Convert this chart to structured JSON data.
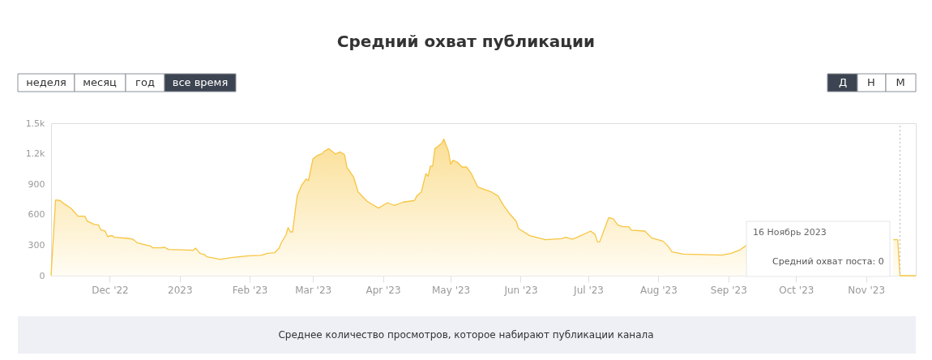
{
  "chart_data": {
    "type": "area",
    "title": "Средний охват публикации",
    "x": [
      "2022-11-05",
      "2022-11-07",
      "2022-11-09",
      "2022-11-11",
      "2022-11-14",
      "2022-11-17",
      "2022-11-20",
      "2022-11-21",
      "2022-11-24",
      "2022-11-26",
      "2022-11-27",
      "2022-11-29",
      "2022-11-30",
      "2022-12-02",
      "2022-12-03",
      "2022-12-09",
      "2022-12-11",
      "2022-12-12",
      "2022-12-13",
      "2022-12-19",
      "2022-12-20",
      "2022-12-24",
      "2022-12-25",
      "2022-12-27",
      "2023-01-07",
      "2023-01-08",
      "2023-01-10",
      "2023-01-12",
      "2023-01-13",
      "2023-01-19",
      "2023-01-24",
      "2023-01-31",
      "2023-02-06",
      "2023-02-09",
      "2023-02-12",
      "2023-02-14",
      "2023-02-15",
      "2023-02-17",
      "2023-02-18",
      "2023-02-19",
      "2023-02-20",
      "2023-02-21",
      "2023-02-22",
      "2023-02-24",
      "2023-02-26",
      "2023-02-27",
      "2023-03-01",
      "2023-03-03",
      "2023-03-05",
      "2023-03-06",
      "2023-03-08",
      "2023-03-11",
      "2023-03-13",
      "2023-03-15",
      "2023-03-16",
      "2023-03-19",
      "2023-03-21",
      "2023-03-25",
      "2023-03-30",
      "2023-04-03",
      "2023-04-06",
      "2023-04-10",
      "2023-04-15",
      "2023-04-16",
      "2023-04-18",
      "2023-04-20",
      "2023-04-21",
      "2023-04-22",
      "2023-04-23",
      "2023-04-24",
      "2023-04-27",
      "2023-04-28",
      "2023-04-30",
      "2023-05-01",
      "2023-05-02",
      "2023-05-04",
      "2023-05-06",
      "2023-05-08",
      "2023-05-10",
      "2023-05-13",
      "2023-05-19",
      "2023-05-22",
      "2023-05-24",
      "2023-05-27",
      "2023-05-30",
      "2023-05-31",
      "2023-06-05",
      "2023-06-12",
      "2023-06-19",
      "2023-06-21",
      "2023-06-24",
      "2023-06-26",
      "2023-07-02",
      "2023-07-04",
      "2023-07-05",
      "2023-07-06",
      "2023-07-08",
      "2023-07-10",
      "2023-07-12",
      "2023-07-14",
      "2023-07-16",
      "2023-07-19",
      "2023-07-20",
      "2023-07-26",
      "2023-07-29",
      "2023-08-03",
      "2023-08-05",
      "2023-08-07",
      "2023-08-12",
      "2023-08-29",
      "2023-09-02",
      "2023-09-06",
      "2023-09-09",
      "2023-10-10",
      "2023-11-13",
      "2023-11-15",
      "2023-11-16",
      "2023-11-23"
    ],
    "series": [
      {
        "color": "#f7c541",
        "values": [
          0,
          745,
          740,
          705,
          660,
          585,
          585,
          537,
          505,
          500,
          452,
          439,
          385,
          395,
          378,
          367,
          360,
          346,
          325,
          293,
          274,
          274,
          282,
          258,
          250,
          271,
          218,
          207,
          186,
          160,
          178,
          194,
          200,
          221,
          226,
          271,
          325,
          399,
          473,
          431,
          431,
          612,
          785,
          891,
          952,
          936,
          1149,
          1184,
          1200,
          1224,
          1250,
          1197,
          1218,
          1191,
          1069,
          971,
          824,
          732,
          665,
          718,
          692,
          724,
          740,
          785,
          824,
          1005,
          979,
          1077,
          1077,
          1250,
          1303,
          1343,
          1224,
          1096,
          1136,
          1117,
          1069,
          1069,
          1011,
          872,
          824,
          785,
          705,
          612,
          537,
          465,
          394,
          354,
          364,
          378,
          359,
          378,
          439,
          404,
          332,
          332,
          452,
          572,
          559,
          500,
          484,
          479,
          447,
          439,
          372,
          340,
          298,
          234,
          213,
          202,
          218,
          253,
          298,
          null,
          354,
          354,
          0,
          0
        ]
      }
    ],
    "xlim": [
      "2022-11-05",
      "2023-11-23"
    ],
    "xticks": [
      {
        "value": "2022-12-01",
        "label": "Dec '22"
      },
      {
        "value": "2023-01-01",
        "label": "2023"
      },
      {
        "value": "2023-02-01",
        "label": "Feb '23"
      },
      {
        "value": "2023-03-01",
        "label": "Mar '23"
      },
      {
        "value": "2023-04-01",
        "label": "Apr '23"
      },
      {
        "value": "2023-05-01",
        "label": "May '23"
      },
      {
        "value": "2023-06-01",
        "label": "Jun '23"
      },
      {
        "value": "2023-07-01",
        "label": "Jul '23"
      },
      {
        "value": "2023-08-01",
        "label": "Aug '23"
      },
      {
        "value": "2023-09-01",
        "label": "Sep '23"
      },
      {
        "value": "2023-10-01",
        "label": "Oct '23"
      },
      {
        "value": "2023-11-01",
        "label": "Nov '23"
      }
    ],
    "ylim": [
      0,
      1500
    ],
    "yticks": [
      0,
      300,
      600,
      900,
      {
        "value": 1200,
        "label": "1.2k"
      },
      {
        "value": 1500,
        "label": "1.5k"
      }
    ],
    "grid": false,
    "ref_lines": [
      {
        "axis": "x",
        "value": "2023-11-16",
        "color": "#c8c8c8",
        "line_style": "dotted"
      }
    ],
    "annotations": [
      "неделя",
      "месяц",
      "год",
      "все время",
      "Д",
      "Н",
      "М",
      "16 Ноябрь 2023",
      "Средний охват поста: 0",
      "Среднее количество просмотров, которое набирают публикации канала"
    ]
  }
}
